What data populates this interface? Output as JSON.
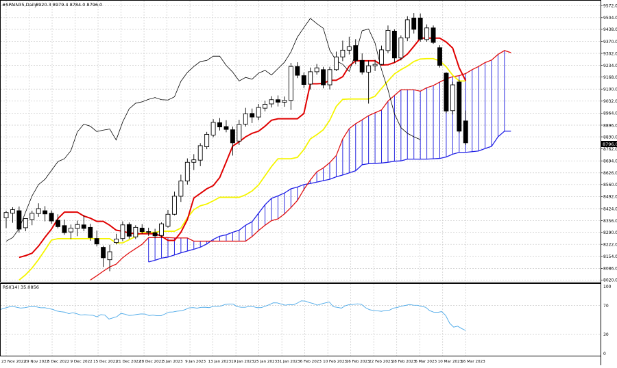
{
  "header": {
    "symbol": "#SPAIN35,Daily",
    "ohlc": "8920.3 8979.4 8784.0 8796.0"
  },
  "current_price_label": "8796.0",
  "chart_data": [
    {
      "type": "candlestick",
      "title": "#SPAIN35,Daily",
      "price_axis_ticks": [
        9572.0,
        9504.0,
        9438.0,
        9370.0,
        9302.0,
        9234.0,
        9168.0,
        9100.0,
        9032.0,
        8964.0,
        8896.0,
        8830.0,
        8762.0,
        8694.0,
        8626.0,
        8560.0,
        8492.0,
        8424.0,
        8356.0,
        8290.0,
        8222.0,
        8154.0,
        8086.0,
        8020.0
      ],
      "ylim": [
        8010,
        9600
      ],
      "date_labels": [
        "23 Nov 2022",
        "29 Nov 2022",
        "5 Dec 2022",
        "9 Dec 2022",
        "15 Dec 2022",
        "21 Dec 2022",
        "28 Dec 2022",
        "3 Jan 2023",
        "9 Jan 2023",
        "13 Jan 2023",
        "19 Jan 2023",
        "25 Jan 2023",
        "31 Jan 2023",
        "6 Feb 2023",
        "10 Feb 2023",
        "16 Feb 2023",
        "22 Feb 2023",
        "28 Feb 2023",
        "6 Mar 2023",
        "10 Mar 2023",
        "16 Mar 2023"
      ],
      "candles": [
        {
          "o": 8372,
          "h": 8412,
          "l": 8314,
          "c": 8402
        },
        {
          "o": 8398,
          "h": 8432,
          "l": 8344,
          "c": 8418
        },
        {
          "o": 8412,
          "h": 8436,
          "l": 8288,
          "c": 8308
        },
        {
          "o": 8316,
          "h": 8366,
          "l": 8296,
          "c": 8368
        },
        {
          "o": 8362,
          "h": 8412,
          "l": 8330,
          "c": 8398
        },
        {
          "o": 8396,
          "h": 8454,
          "l": 8378,
          "c": 8424
        },
        {
          "o": 8412,
          "h": 8438,
          "l": 8352,
          "c": 8394
        },
        {
          "o": 8398,
          "h": 8414,
          "l": 8338,
          "c": 8354
        },
        {
          "o": 8358,
          "h": 8392,
          "l": 8312,
          "c": 8322
        },
        {
          "o": 8328,
          "h": 8362,
          "l": 8276,
          "c": 8288
        },
        {
          "o": 8292,
          "h": 8334,
          "l": 8252,
          "c": 8314
        },
        {
          "o": 8312,
          "h": 8356,
          "l": 8268,
          "c": 8334
        },
        {
          "o": 8332,
          "h": 8388,
          "l": 8296,
          "c": 8312
        },
        {
          "o": 8318,
          "h": 8338,
          "l": 8242,
          "c": 8260
        },
        {
          "o": 8255,
          "h": 8300,
          "l": 8210,
          "c": 8224
        },
        {
          "o": 8205,
          "h": 8214,
          "l": 8094,
          "c": 8146
        },
        {
          "o": 8135,
          "h": 8220,
          "l": 8070,
          "c": 8180
        },
        {
          "o": 8232,
          "h": 8282,
          "l": 8222,
          "c": 8252
        },
        {
          "o": 8255,
          "h": 8352,
          "l": 8240,
          "c": 8332
        },
        {
          "o": 8334,
          "h": 8346,
          "l": 8254,
          "c": 8268
        },
        {
          "o": 8264,
          "h": 8330,
          "l": 8252,
          "c": 8318
        },
        {
          "o": 8314,
          "h": 8336,
          "l": 8282,
          "c": 8294
        },
        {
          "o": 8294,
          "h": 8316,
          "l": 8270,
          "c": 8292
        },
        {
          "o": 8288,
          "h": 8310,
          "l": 8256,
          "c": 8270
        },
        {
          "o": 8272,
          "h": 8346,
          "l": 8260,
          "c": 8338
        },
        {
          "o": 8324,
          "h": 8416,
          "l": 8316,
          "c": 8392
        },
        {
          "o": 8392,
          "h": 8520,
          "l": 8386,
          "c": 8494
        },
        {
          "o": 8494,
          "h": 8616,
          "l": 8462,
          "c": 8580
        },
        {
          "o": 8580,
          "h": 8708,
          "l": 8560,
          "c": 8686
        },
        {
          "o": 8686,
          "h": 8732,
          "l": 8642,
          "c": 8700
        },
        {
          "o": 8698,
          "h": 8794,
          "l": 8664,
          "c": 8780
        },
        {
          "o": 8774,
          "h": 8858,
          "l": 8760,
          "c": 8844
        },
        {
          "o": 8840,
          "h": 8930,
          "l": 8828,
          "c": 8912
        },
        {
          "o": 8910,
          "h": 8936,
          "l": 8866,
          "c": 8886
        },
        {
          "o": 8888,
          "h": 8924,
          "l": 8856,
          "c": 8872
        },
        {
          "o": 8870,
          "h": 8888,
          "l": 8724,
          "c": 8796
        },
        {
          "o": 8806,
          "h": 8926,
          "l": 8784,
          "c": 8900
        },
        {
          "o": 8902,
          "h": 8994,
          "l": 8888,
          "c": 8960
        },
        {
          "o": 8962,
          "h": 8990,
          "l": 8908,
          "c": 8942
        },
        {
          "o": 8942,
          "h": 9016,
          "l": 8924,
          "c": 8996
        },
        {
          "o": 8992,
          "h": 9034,
          "l": 8974,
          "c": 9014
        },
        {
          "o": 9016,
          "h": 9060,
          "l": 8996,
          "c": 9040
        },
        {
          "o": 9040,
          "h": 9064,
          "l": 9002,
          "c": 9026
        },
        {
          "o": 9026,
          "h": 9058,
          "l": 9000,
          "c": 9036
        },
        {
          "o": 9036,
          "h": 9248,
          "l": 8982,
          "c": 9228
        },
        {
          "o": 9228,
          "h": 9252,
          "l": 9162,
          "c": 9178
        },
        {
          "o": 9176,
          "h": 9194,
          "l": 9106,
          "c": 9126
        },
        {
          "o": 9128,
          "h": 9222,
          "l": 9098,
          "c": 9198
        },
        {
          "o": 9198,
          "h": 9242,
          "l": 9182,
          "c": 9220
        },
        {
          "o": 9210,
          "h": 9226,
          "l": 9104,
          "c": 9124
        },
        {
          "o": 9124,
          "h": 9226,
          "l": 9098,
          "c": 9210
        },
        {
          "o": 9210,
          "h": 9312,
          "l": 9202,
          "c": 9282
        },
        {
          "o": 9282,
          "h": 9374,
          "l": 9258,
          "c": 9320
        },
        {
          "o": 9320,
          "h": 9396,
          "l": 9296,
          "c": 9340
        },
        {
          "o": 9346,
          "h": 9382,
          "l": 9240,
          "c": 9262
        },
        {
          "o": 9262,
          "h": 9302,
          "l": 9182,
          "c": 9196
        },
        {
          "o": 9196,
          "h": 9262,
          "l": 9018,
          "c": 9232
        },
        {
          "o": 9232,
          "h": 9266,
          "l": 9202,
          "c": 9240
        },
        {
          "o": 9240,
          "h": 9346,
          "l": 9236,
          "c": 9322
        },
        {
          "o": 9318,
          "h": 9460,
          "l": 9304,
          "c": 9432
        },
        {
          "o": 9428,
          "h": 9438,
          "l": 9250,
          "c": 9276
        },
        {
          "o": 9276,
          "h": 9404,
          "l": 9262,
          "c": 9390
        },
        {
          "o": 9390,
          "h": 9512,
          "l": 9372,
          "c": 9492
        },
        {
          "o": 9502,
          "h": 9530,
          "l": 9414,
          "c": 9438
        },
        {
          "o": 9502,
          "h": 9528,
          "l": 9368,
          "c": 9382
        },
        {
          "o": 9380,
          "h": 9466,
          "l": 9368,
          "c": 9446
        },
        {
          "o": 9446,
          "h": 9460,
          "l": 9356,
          "c": 9364
        },
        {
          "o": 9334,
          "h": 9348,
          "l": 9222,
          "c": 9234
        },
        {
          "o": 9190,
          "h": 9196,
          "l": 8964,
          "c": 8976
        },
        {
          "o": 8978,
          "h": 9142,
          "l": 8956,
          "c": 9124
        },
        {
          "o": 9140,
          "h": 9152,
          "l": 8850,
          "c": 8862
        },
        {
          "o": 8920,
          "h": 8979,
          "l": 8784,
          "c": 8796
        }
      ],
      "tenkan_sen": [
        8148,
        8158,
        8172,
        8212,
        8262,
        8308,
        8368,
        8404,
        8404,
        8404,
        8382,
        8370,
        8352,
        8352,
        8330,
        8302,
        8296,
        8286,
        8282,
        8282,
        8282,
        8282,
        8268,
        8244,
        8244,
        8290,
        8362,
        8484,
        8510,
        8536,
        8554,
        8600,
        8688,
        8778,
        8802,
        8830,
        8850,
        8862,
        8890,
        8924,
        8932,
        8932,
        8932,
        8932,
        8962,
        9130,
        9130,
        9132,
        9150,
        9150,
        9170,
        9230,
        9260,
        9260,
        9260,
        9260,
        9236,
        9238,
        9250,
        9270,
        9298,
        9342,
        9388,
        9388,
        9388,
        9388,
        9366,
        9332,
        9220,
        9148
      ],
      "kijun_sen": [
        8020,
        8050,
        8088,
        8136,
        8190,
        8246,
        8254,
        8254,
        8254,
        8254,
        8254,
        8254,
        8254,
        8254,
        8254,
        8230,
        8230,
        8248,
        8266,
        8290,
        8290,
        8290,
        8296,
        8296,
        8296,
        8314,
        8372,
        8418,
        8440,
        8450,
        8468,
        8488,
        8488,
        8488,
        8488,
        8502,
        8524,
        8558,
        8610,
        8662,
        8706,
        8706,
        8706,
        8714,
        8758,
        8818,
        8842,
        8870,
        8924,
        9002,
        9042,
        9044,
        9044,
        9044,
        9044,
        9060,
        9104,
        9146,
        9186,
        9210,
        9230,
        9256,
        9270,
        9272,
        9272,
        9260,
        9226,
        9178,
        9146,
        9146
      ],
      "senkou_span_a": [
        8122,
        8132,
        8144,
        8150,
        8162,
        8174,
        8184,
        8194,
        8206,
        8224,
        8250,
        8268,
        8276,
        8290,
        8302,
        8330,
        8350,
        8398,
        8446,
        8482,
        8496,
        8512,
        8536,
        8546,
        8560,
        8566,
        8574,
        8582,
        8590,
        8604,
        8614,
        8626,
        8638,
        8672,
        8678,
        8680,
        8682,
        8686,
        8692,
        8694,
        8704,
        8704,
        8704,
        8704,
        8706,
        8708,
        8716,
        8732,
        8742,
        8742,
        8746,
        8750,
        8764,
        8776,
        8830,
        8862,
        8862
      ],
      "senkou_span_b": [
        8020,
        8044,
        8070,
        8094,
        8110,
        8146,
        8174,
        8198,
        8222,
        8260,
        8260,
        8260,
        8260,
        8258,
        8258,
        8258,
        8240,
        8240,
        8240,
        8240,
        8240,
        8240,
        8240,
        8240,
        8240,
        8266,
        8300,
        8330,
        8356,
        8366,
        8394,
        8430,
        8470,
        8532,
        8586,
        8632,
        8654,
        8684,
        8724,
        8818,
        8876,
        8904,
        8926,
        8950,
        8966,
        8982,
        9032,
        9064,
        9096,
        9096,
        9096,
        9088,
        9108,
        9120,
        9140,
        9158,
        9170,
        9176,
        9188,
        9210,
        9228,
        9250,
        9264,
        9296,
        9318,
        9306
      ],
      "chikou_span": [
        8240,
        8260,
        8310,
        8404,
        8496,
        8560,
        8590,
        8640,
        8690,
        8706,
        8752,
        8858,
        8902,
        8890,
        8860,
        8868,
        8874,
        8812,
        8914,
        8988,
        9020,
        9028,
        9042,
        9052,
        9040,
        9038,
        9056,
        9144,
        9194,
        9228,
        9256,
        9262,
        9286,
        9286,
        9234,
        9196,
        9146,
        9166,
        9156,
        9190,
        9206,
        9180,
        9216,
        9252,
        9310,
        9394,
        9448,
        9500,
        9470,
        9444,
        9320,
        9260,
        9240,
        9200,
        9300,
        9430,
        9440,
        9360,
        9210,
        9096,
        8960,
        8882,
        8850,
        8830,
        8814
      ]
    },
    {
      "type": "line",
      "title": "RSI(14) 35.0856",
      "ylim": [
        0,
        100
      ],
      "y_ticks": [
        100,
        70,
        30,
        0
      ],
      "values": [
        64.5,
        66.2,
        67.8,
        68.6,
        67.4,
        66.3,
        66.8,
        67.9,
        68.4,
        67.9,
        66.7,
        66.8,
        65.5,
        64.5,
        62.2,
        61.3,
        60.6,
        58.5,
        59.8,
        58.4,
        56.6,
        57.1,
        56.5,
        56.3,
        54.2,
        57.2,
        56.5,
        51.0,
        52.7,
        54.4,
        58.9,
        57.8,
        56.0,
        56.4,
        57.5,
        58.2,
        58.0,
        55.9,
        56.5,
        55.7,
        55.7,
        58.1,
        60.7,
        60.9,
        62.0,
        62.5,
        64.1,
        66.6,
        67.0,
        66.2,
        67.3,
        67.5,
        66.9,
        68.6,
        68.7,
        69.2,
        71.4,
        71.9,
        71.8,
        68.3,
        67.4,
        67.4,
        68.6,
        68.3,
        66.9,
        67.0,
        68.9,
        71.0,
        73.6,
        73.5,
        71.9,
        70.3,
        71.2,
        70.8,
        73.2,
        76.4,
        76.0,
        74.0,
        72.6,
        70.3,
        72.1,
        73.5,
        74.7,
        68.1,
        67.3,
        66.2,
        69.6,
        71.1,
        71.4,
        72.2,
        71.5,
        66.9,
        64.0,
        63.0,
        62.4,
        61.8,
        63.0,
        63.4,
        66.2,
        67.2,
        69.0,
        70.0,
        71.2,
        70.3,
        70.2,
        68.6,
        67.5,
        62.8,
        60.7,
        60.3,
        61.4,
        56.2,
        45.3,
        39.8,
        41.1,
        37.8,
        35.1
      ]
    }
  ]
}
